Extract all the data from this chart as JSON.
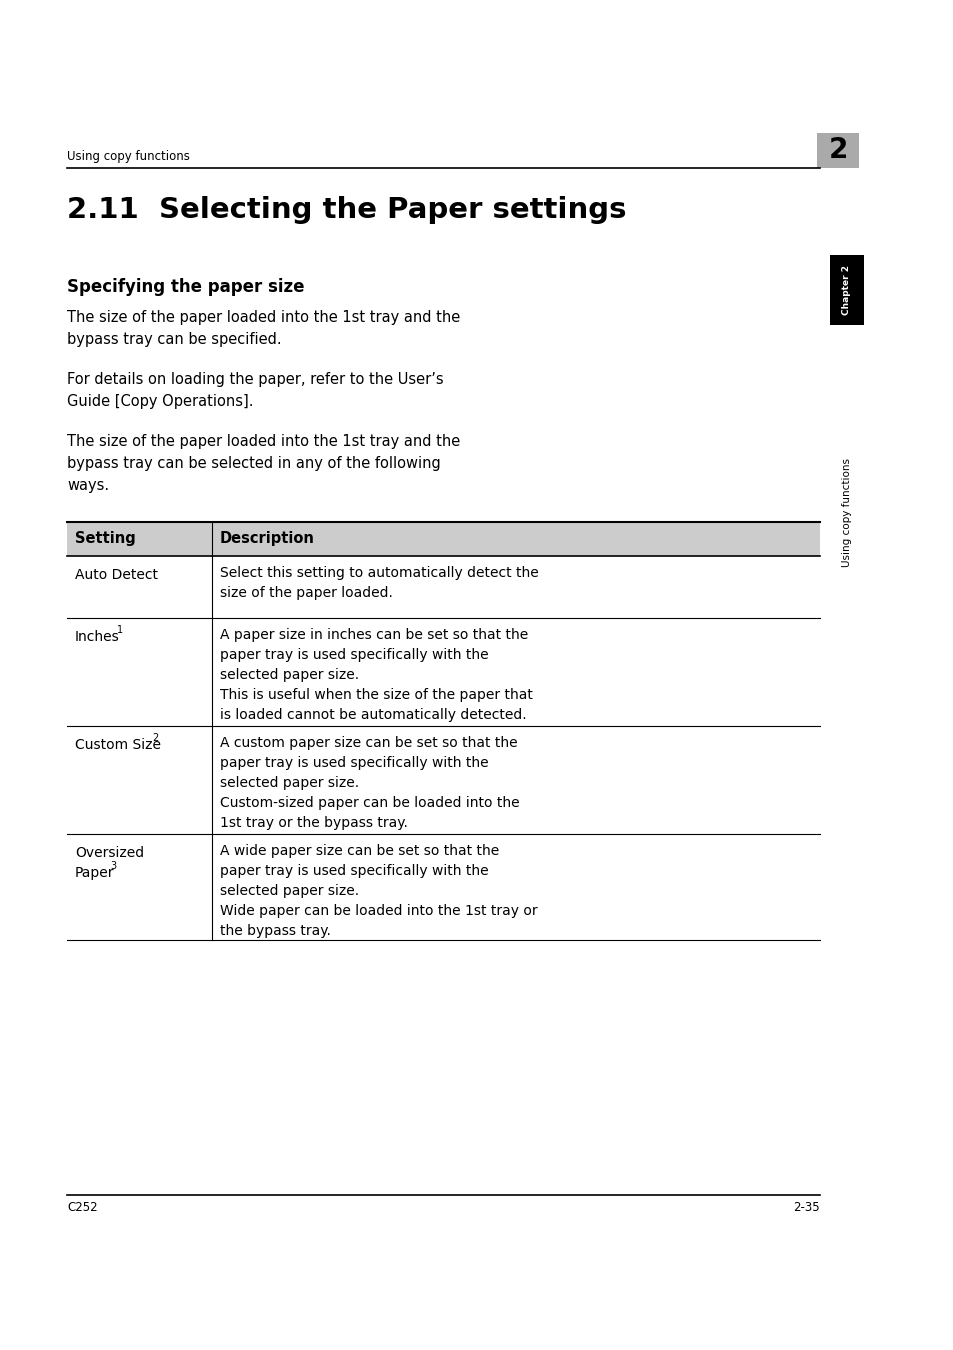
{
  "page_bg": "#ffffff",
  "header_text": "Using copy functions",
  "header_num": "2",
  "header_num_bg": "#aaaaaa",
  "title": "2.11  Selecting the Paper settings",
  "subtitle": "Specifying the paper size",
  "para1_lines": [
    "The size of the paper loaded into the 1st tray and the",
    "bypass tray can be specified."
  ],
  "para2_lines": [
    "For details on loading the paper, refer to the User’s",
    "Guide [Copy Operations]."
  ],
  "para3_lines": [
    "The size of the paper loaded into the 1st tray and the",
    "bypass tray can be selected in any of the following",
    "ways."
  ],
  "table_header_bg": "#cccccc",
  "table_col1_header": "Setting",
  "table_col2_header": "Description",
  "table_rows": [
    {
      "setting_parts": [
        [
          "Auto Detect",
          false
        ]
      ],
      "desc_lines": [
        "Select this setting to automatically detect the",
        "size of the paper loaded."
      ]
    },
    {
      "setting_parts": [
        [
          "Inches",
          false
        ],
        [
          "*1",
          true
        ]
      ],
      "desc_lines": [
        "A paper size in inches can be set so that the",
        "paper tray is used specifically with the",
        "selected paper size.",
        "This is useful when the size of the paper that",
        "is loaded cannot be automatically detected."
      ]
    },
    {
      "setting_parts": [
        [
          "Custom Size",
          false
        ],
        [
          "*2",
          true
        ]
      ],
      "desc_lines": [
        "A custom paper size can be set so that the",
        "paper tray is used specifically with the",
        "selected paper size.",
        "Custom-sized paper can be loaded into the",
        "1st tray or the bypass tray."
      ]
    },
    {
      "setting_parts": [
        [
          "Oversized",
          false
        ],
        [
          "\nPaper",
          false
        ],
        [
          "*3",
          true
        ]
      ],
      "desc_lines": [
        "A wide paper size can be set so that the",
        "paper tray is used specifically with the",
        "selected paper size.",
        "Wide paper can be loaded into the 1st tray or",
        "the bypass tray."
      ]
    }
  ],
  "sidebar_text": "Using copy functions",
  "sidebar_bg": "#000000",
  "footer_left": "C252",
  "footer_right": "2-35"
}
